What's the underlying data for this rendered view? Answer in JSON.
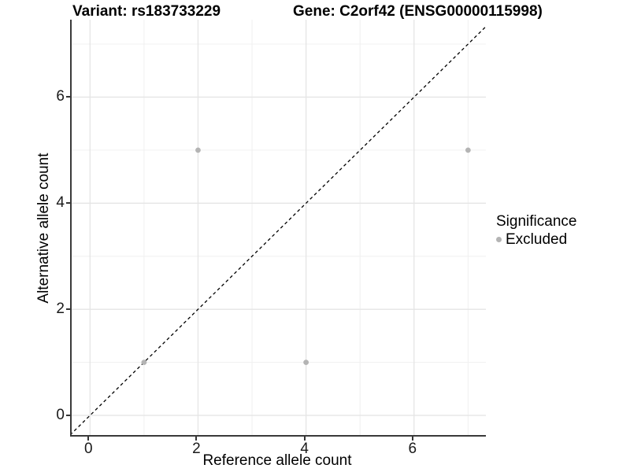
{
  "title": {
    "left": "Variant: rs183733229",
    "right": "Gene: C2orf42 (ENSG00000115998)"
  },
  "chart_data": {
    "type": "scatter",
    "xlabel": "Reference allele count",
    "ylabel": "Alternative allele count",
    "xlim": [
      -0.34,
      7.33
    ],
    "ylim": [
      -0.37,
      7.46
    ],
    "x_ticks": [
      0,
      2,
      4,
      6
    ],
    "y_ticks": [
      0,
      2,
      4,
      6
    ],
    "minor_ticks": [
      1,
      3,
      5,
      7
    ],
    "grid": {
      "major_color": "#e5e5e5",
      "minor_color": "#f0f0f0",
      "on": true
    },
    "axis_color": "#3a3a3a",
    "series": [
      {
        "name": "Excluded",
        "color": "#b4b4b4",
        "points": [
          {
            "x": 1,
            "y": 1
          },
          {
            "x": 2,
            "y": 5
          },
          {
            "x": 4,
            "y": 1
          },
          {
            "x": 7,
            "y": 5
          }
        ]
      }
    ],
    "reference_line": {
      "kind": "identity",
      "style": "dashed",
      "color": "#000000",
      "from": -0.37,
      "to": 7.46
    },
    "legend_position": "right"
  },
  "legend": {
    "title": "Significance",
    "items": [
      {
        "label": "Excluded",
        "color": "#b4b4b4"
      }
    ]
  }
}
